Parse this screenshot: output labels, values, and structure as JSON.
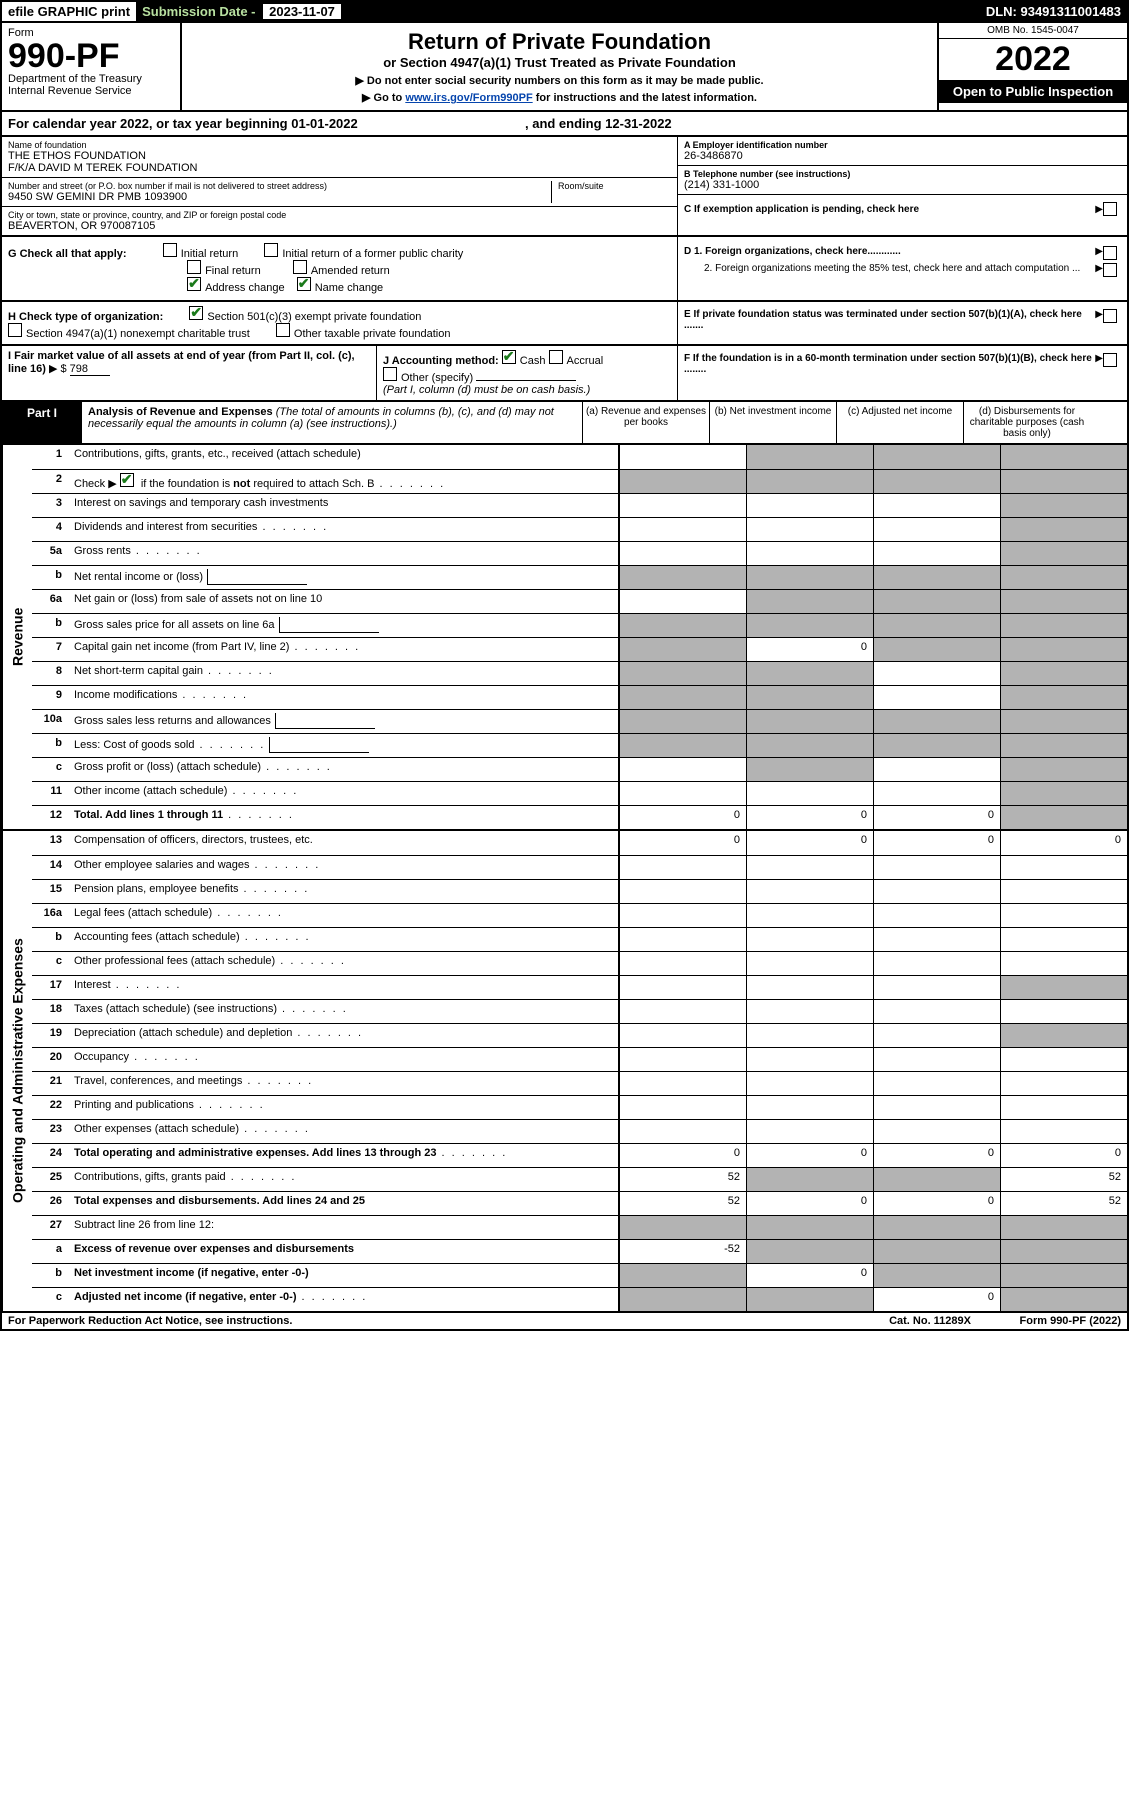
{
  "topbar": {
    "efile": "efile GRAPHIC print",
    "sublabel": "Submission Date -",
    "subdate": "2023-11-07",
    "dln_label": "DLN:",
    "dln": "93491311001483"
  },
  "header": {
    "form_label": "Form",
    "form_number": "990-PF",
    "dept": "Department of the Treasury",
    "irs": "Internal Revenue Service",
    "title": "Return of Private Foundation",
    "subtitle": "or Section 4947(a)(1) Trust Treated as Private Foundation",
    "note1": "▶ Do not enter social security numbers on this form as it may be made public.",
    "note2_pre": "▶ Go to ",
    "note2_link": "www.irs.gov/Form990PF",
    "note2_post": " for instructions and the latest information.",
    "omb": "OMB No. 1545-0047",
    "year": "2022",
    "inspect": "Open to Public Inspection"
  },
  "cal_year": {
    "text1": "For calendar year 2022, or tax year beginning ",
    "begin": "01-01-2022",
    "text2": ", and ending ",
    "end": "12-31-2022"
  },
  "info": {
    "name_label": "Name of foundation",
    "name1": "THE ETHOS FOUNDATION",
    "name2": "F/K/A DAVID M TEREK FOUNDATION",
    "addr_label": "Number and street (or P.O. box number if mail is not delivered to street address)",
    "addr": "9450 SW GEMINI DR PMB 1093900",
    "room_label": "Room/suite",
    "city_label": "City or town, state or province, country, and ZIP or foreign postal code",
    "city": "BEAVERTON, OR  970087105",
    "a_label": "A Employer identification number",
    "a_val": "26-3486870",
    "b_label": "B Telephone number (see instructions)",
    "b_val": "(214) 331-1000",
    "c_label": "C If exemption application is pending, check here"
  },
  "g": {
    "label": "G Check all that apply:",
    "opts": [
      "Initial return",
      "Initial return of a former public charity",
      "Final return",
      "Amended return",
      "Address change",
      "Name change"
    ]
  },
  "d": {
    "d1": "D 1. Foreign organizations, check here............",
    "d2": "2. Foreign organizations meeting the 85% test, check here and attach computation ...",
    "e": "E  If private foundation status was terminated under section 507(b)(1)(A), check here ......."
  },
  "h": {
    "label": "H Check type of organization:",
    "opt1": "Section 501(c)(3) exempt private foundation",
    "opt2": "Section 4947(a)(1) nonexempt charitable trust",
    "opt3": "Other taxable private foundation"
  },
  "i": {
    "label": "I Fair market value of all assets at end of year (from Part II, col. (c), line 16)",
    "arrow": "▶ $",
    "val": "798"
  },
  "j": {
    "label": "J Accounting method:",
    "cash": "Cash",
    "accrual": "Accrual",
    "other": "Other (specify)",
    "note": "(Part I, column (d) must be on cash basis.)"
  },
  "f": {
    "label": "F  If the foundation is in a 60-month termination under section 507(b)(1)(B), check here ........"
  },
  "part1": {
    "label": "Part I",
    "title": "Analysis of Revenue and Expenses",
    "sub": " (The total of amounts in columns (b), (c), and (d) may not necessarily equal the amounts in column (a) (see instructions).)",
    "cols": [
      "(a) Revenue and expenses per books",
      "(b) Net investment income",
      "(c) Adjusted net income",
      "(d) Disbursements for charitable purposes (cash basis only)"
    ]
  },
  "revenue_label": "Revenue",
  "expenses_label": "Operating and Administrative Expenses",
  "lines_rev": [
    {
      "num": "1",
      "text": "Contributions, gifts, grants, etc., received (attach schedule)",
      "cells": [
        "",
        "",
        "",
        ""
      ],
      "shaded": [
        false,
        true,
        true,
        true
      ]
    },
    {
      "num": "2",
      "text": "Check ▶ ☑ if the foundation is not required to attach Sch. B",
      "is_check": true,
      "cells": [
        "",
        "",
        "",
        ""
      ],
      "shaded": [
        true,
        true,
        true,
        true
      ],
      "dots": true
    },
    {
      "num": "3",
      "text": "Interest on savings and temporary cash investments",
      "cells": [
        "",
        "",
        "",
        ""
      ],
      "shaded": [
        false,
        false,
        false,
        true
      ]
    },
    {
      "num": "4",
      "text": "Dividends and interest from securities",
      "cells": [
        "",
        "",
        "",
        ""
      ],
      "shaded": [
        false,
        false,
        false,
        true
      ],
      "dots": true
    },
    {
      "num": "5a",
      "text": "Gross rents",
      "cells": [
        "",
        "",
        "",
        ""
      ],
      "shaded": [
        false,
        false,
        false,
        true
      ],
      "dots": true
    },
    {
      "num": "b",
      "text": "Net rental income or (loss)",
      "inline": true,
      "cells": [
        "",
        "",
        "",
        ""
      ],
      "shaded": [
        true,
        true,
        true,
        true
      ]
    },
    {
      "num": "6a",
      "text": "Net gain or (loss) from sale of assets not on line 10",
      "cells": [
        "",
        "",
        "",
        ""
      ],
      "shaded": [
        false,
        true,
        true,
        true
      ]
    },
    {
      "num": "b",
      "text": "Gross sales price for all assets on line 6a",
      "inline": true,
      "cells": [
        "",
        "",
        "",
        ""
      ],
      "shaded": [
        true,
        true,
        true,
        true
      ]
    },
    {
      "num": "7",
      "text": "Capital gain net income (from Part IV, line 2)",
      "cells": [
        "",
        "0",
        "",
        ""
      ],
      "shaded": [
        true,
        false,
        true,
        true
      ],
      "dots": true
    },
    {
      "num": "8",
      "text": "Net short-term capital gain",
      "cells": [
        "",
        "",
        "",
        ""
      ],
      "shaded": [
        true,
        true,
        false,
        true
      ],
      "dots": true
    },
    {
      "num": "9",
      "text": "Income modifications",
      "cells": [
        "",
        "",
        "",
        ""
      ],
      "shaded": [
        true,
        true,
        false,
        true
      ],
      "dots": true
    },
    {
      "num": "10a",
      "text": "Gross sales less returns and allowances",
      "inline": true,
      "cells": [
        "",
        "",
        "",
        ""
      ],
      "shaded": [
        true,
        true,
        true,
        true
      ]
    },
    {
      "num": "b",
      "text": "Less: Cost of goods sold",
      "inline": true,
      "cells": [
        "",
        "",
        "",
        ""
      ],
      "shaded": [
        true,
        true,
        true,
        true
      ],
      "dots": true
    },
    {
      "num": "c",
      "text": "Gross profit or (loss) (attach schedule)",
      "cells": [
        "",
        "",
        "",
        ""
      ],
      "shaded": [
        false,
        true,
        false,
        true
      ],
      "dots": true
    },
    {
      "num": "11",
      "text": "Other income (attach schedule)",
      "cells": [
        "",
        "",
        "",
        ""
      ],
      "shaded": [
        false,
        false,
        false,
        true
      ],
      "dots": true
    },
    {
      "num": "12",
      "text": "Total. Add lines 1 through 11",
      "bold": true,
      "cells": [
        "0",
        "0",
        "0",
        ""
      ],
      "shaded": [
        false,
        false,
        false,
        true
      ],
      "dots": true
    }
  ],
  "lines_exp": [
    {
      "num": "13",
      "text": "Compensation of officers, directors, trustees, etc.",
      "cells": [
        "0",
        "0",
        "0",
        "0"
      ],
      "shaded": [
        false,
        false,
        false,
        false
      ]
    },
    {
      "num": "14",
      "text": "Other employee salaries and wages",
      "cells": [
        "",
        "",
        "",
        ""
      ],
      "shaded": [
        false,
        false,
        false,
        false
      ],
      "dots": true
    },
    {
      "num": "15",
      "text": "Pension plans, employee benefits",
      "cells": [
        "",
        "",
        "",
        ""
      ],
      "shaded": [
        false,
        false,
        false,
        false
      ],
      "dots": true
    },
    {
      "num": "16a",
      "text": "Legal fees (attach schedule)",
      "cells": [
        "",
        "",
        "",
        ""
      ],
      "shaded": [
        false,
        false,
        false,
        false
      ],
      "dots": true
    },
    {
      "num": "b",
      "text": "Accounting fees (attach schedule)",
      "cells": [
        "",
        "",
        "",
        ""
      ],
      "shaded": [
        false,
        false,
        false,
        false
      ],
      "dots": true
    },
    {
      "num": "c",
      "text": "Other professional fees (attach schedule)",
      "cells": [
        "",
        "",
        "",
        ""
      ],
      "shaded": [
        false,
        false,
        false,
        false
      ],
      "dots": true
    },
    {
      "num": "17",
      "text": "Interest",
      "cells": [
        "",
        "",
        "",
        ""
      ],
      "shaded": [
        false,
        false,
        false,
        true
      ],
      "dots": true
    },
    {
      "num": "18",
      "text": "Taxes (attach schedule) (see instructions)",
      "cells": [
        "",
        "",
        "",
        ""
      ],
      "shaded": [
        false,
        false,
        false,
        false
      ],
      "dots": true
    },
    {
      "num": "19",
      "text": "Depreciation (attach schedule) and depletion",
      "cells": [
        "",
        "",
        "",
        ""
      ],
      "shaded": [
        false,
        false,
        false,
        true
      ],
      "dots": true
    },
    {
      "num": "20",
      "text": "Occupancy",
      "cells": [
        "",
        "",
        "",
        ""
      ],
      "shaded": [
        false,
        false,
        false,
        false
      ],
      "dots": true
    },
    {
      "num": "21",
      "text": "Travel, conferences, and meetings",
      "cells": [
        "",
        "",
        "",
        ""
      ],
      "shaded": [
        false,
        false,
        false,
        false
      ],
      "dots": true
    },
    {
      "num": "22",
      "text": "Printing and publications",
      "cells": [
        "",
        "",
        "",
        ""
      ],
      "shaded": [
        false,
        false,
        false,
        false
      ],
      "dots": true
    },
    {
      "num": "23",
      "text": "Other expenses (attach schedule)",
      "cells": [
        "",
        "",
        "",
        ""
      ],
      "shaded": [
        false,
        false,
        false,
        false
      ],
      "dots": true
    },
    {
      "num": "24",
      "text": "Total operating and administrative expenses. Add lines 13 through 23",
      "bold": true,
      "cells": [
        "0",
        "0",
        "0",
        "0"
      ],
      "shaded": [
        false,
        false,
        false,
        false
      ],
      "dots": true
    },
    {
      "num": "25",
      "text": "Contributions, gifts, grants paid",
      "cells": [
        "52",
        "",
        "",
        "52"
      ],
      "shaded": [
        false,
        true,
        true,
        false
      ],
      "dots": true
    },
    {
      "num": "26",
      "text": "Total expenses and disbursements. Add lines 24 and 25",
      "bold": true,
      "cells": [
        "52",
        "0",
        "0",
        "52"
      ],
      "shaded": [
        false,
        false,
        false,
        false
      ]
    },
    {
      "num": "27",
      "text": "Subtract line 26 from line 12:",
      "cells": [
        "",
        "",
        "",
        ""
      ],
      "shaded": [
        true,
        true,
        true,
        true
      ]
    },
    {
      "num": "a",
      "text": "Excess of revenue over expenses and disbursements",
      "bold": true,
      "cells": [
        "-52",
        "",
        "",
        ""
      ],
      "shaded": [
        false,
        true,
        true,
        true
      ]
    },
    {
      "num": "b",
      "text": "Net investment income (if negative, enter -0-)",
      "bold": true,
      "cells": [
        "",
        "0",
        "",
        ""
      ],
      "shaded": [
        true,
        false,
        true,
        true
      ]
    },
    {
      "num": "c",
      "text": "Adjusted net income (if negative, enter -0-)",
      "bold": true,
      "cells": [
        "",
        "",
        "0",
        ""
      ],
      "shaded": [
        true,
        true,
        false,
        true
      ],
      "dots": true
    }
  ],
  "footer": {
    "left": "For Paperwork Reduction Act Notice, see instructions.",
    "mid": "Cat. No. 11289X",
    "right": "Form 990-PF (2022)"
  }
}
